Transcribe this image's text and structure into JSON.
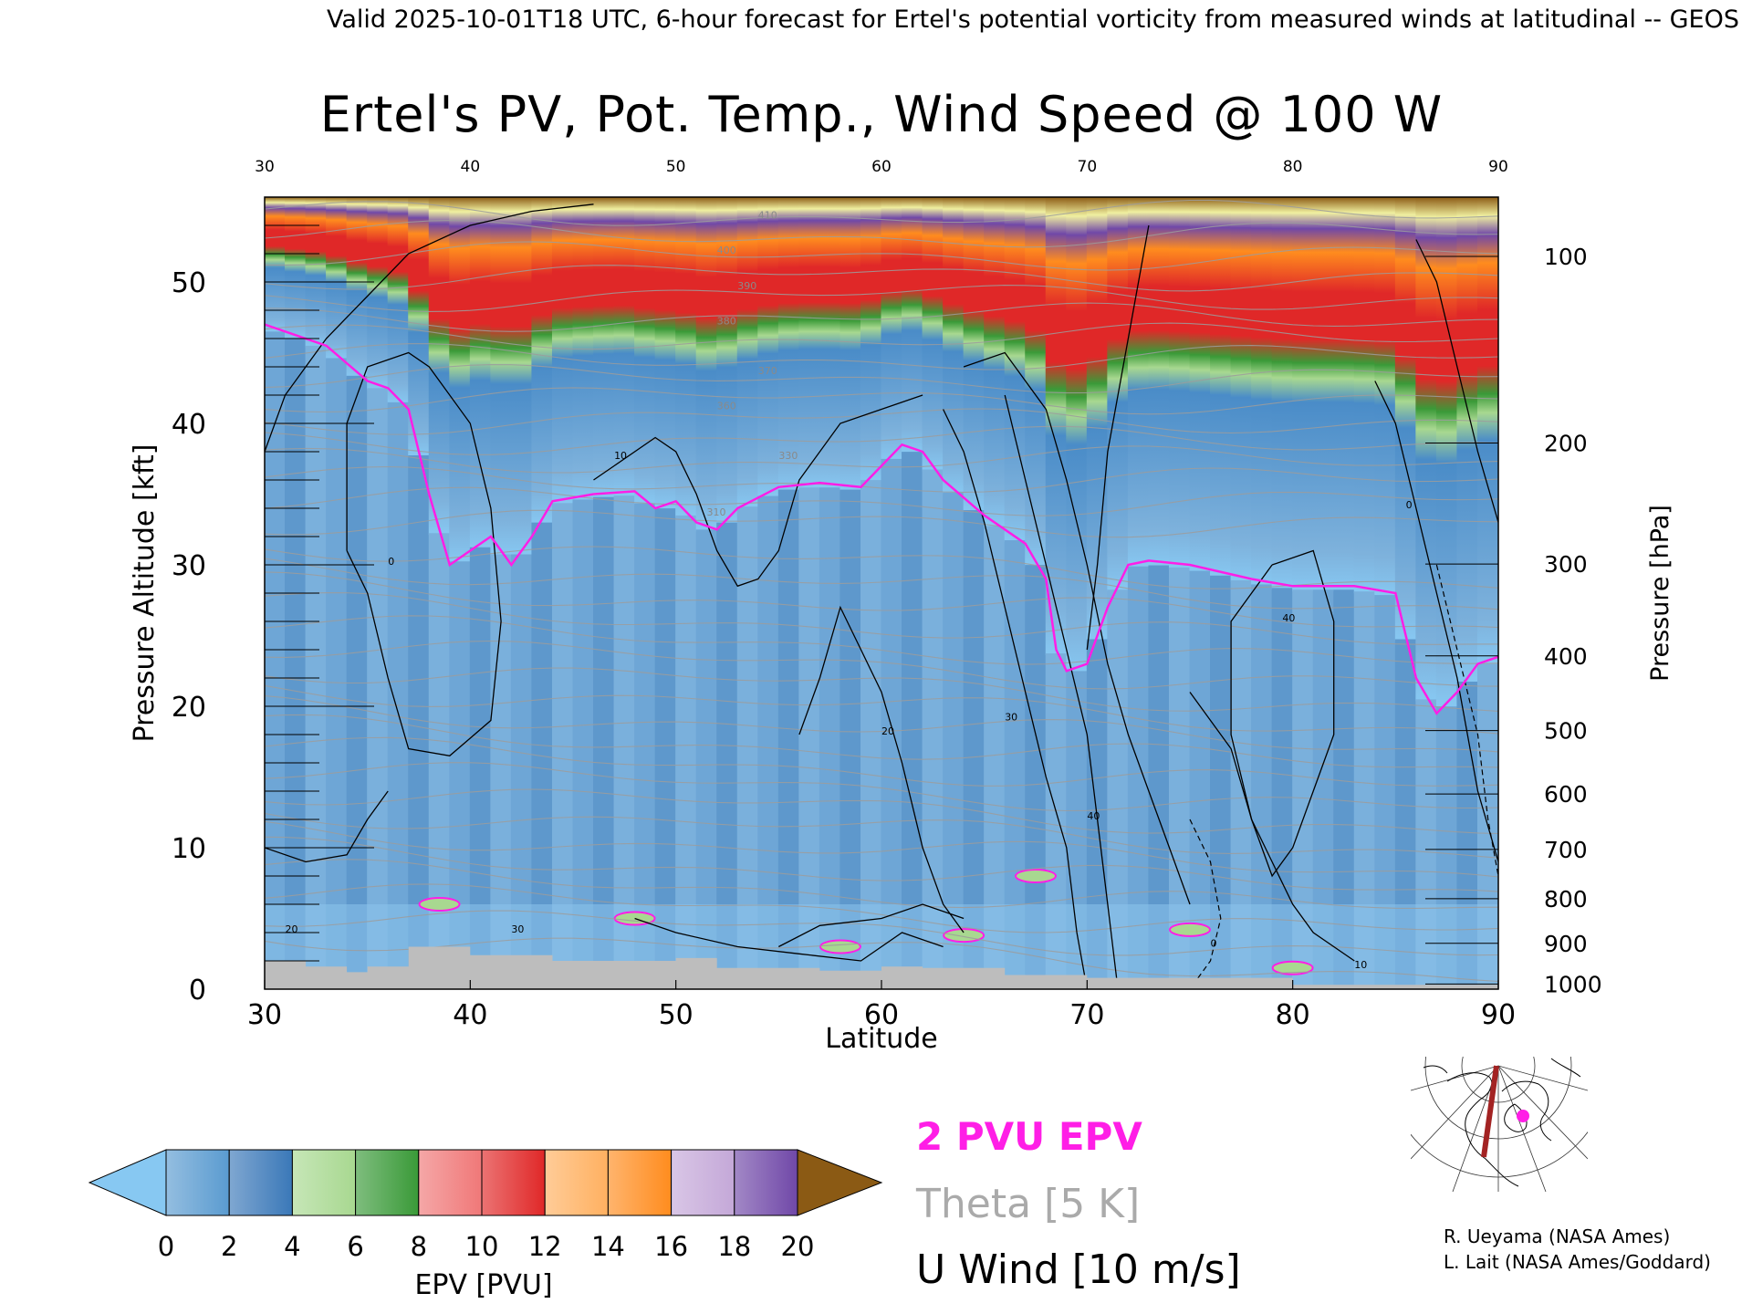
{
  "header": {
    "text": "Valid 2025-10-01T18 UTC, 6-hour forecast for Ertel's potential vorticity from measured winds at latitudinal -- GEOS"
  },
  "chart_data": {
    "type": "heatmap",
    "title": "Ertel's PV, Pot. Temp., Wind Speed @ 100 W",
    "xlabel": "Latitude",
    "ylabel_left": "Pressure Altitude [kft]",
    "ylabel_right": "Pressure [hPa]",
    "xlim": [
      30,
      90
    ],
    "ylim": [
      0,
      56
    ],
    "x_ticks": [
      "30",
      "40",
      "50",
      "60",
      "70",
      "80",
      "90"
    ],
    "top_ticks": [
      "30",
      "40",
      "50",
      "60",
      "70",
      "80",
      "90"
    ],
    "y_ticks": [
      "0",
      "10",
      "20",
      "30",
      "40",
      "50"
    ],
    "pressure_ticks": [
      {
        "label": "100",
        "hpa": 100
      },
      {
        "label": "200",
        "hpa": 200
      },
      {
        "label": "300",
        "hpa": 300
      },
      {
        "label": "400",
        "hpa": 400
      },
      {
        "label": "500",
        "hpa": 500
      },
      {
        "label": "600",
        "hpa": 600
      },
      {
        "label": "700",
        "hpa": 700
      },
      {
        "label": "800",
        "hpa": 800
      },
      {
        "label": "900",
        "hpa": 900
      },
      {
        "label": "1000",
        "hpa": 1000
      }
    ],
    "colorbar": {
      "label": "EPV [PVU]",
      "ticks": [
        "0",
        "2",
        "4",
        "6",
        "8",
        "10",
        "12",
        "14",
        "16",
        "18",
        "20"
      ],
      "colors": [
        "#5a9bd0",
        "#3a78b8",
        "#a8d890",
        "#3a9a38",
        "#f07878",
        "#e02828",
        "#ffb060",
        "#ff8c1e",
        "#c4a8d8",
        "#7048a8",
        "#f0f0a0"
      ],
      "under_color": "#87c8f2",
      "over_color": "#8b5a14"
    },
    "tropopause_contour": {
      "label": "2 PVU EPV",
      "color": "#ff1ee6",
      "points": [
        [
          30,
          47
        ],
        [
          31,
          46.5
        ],
        [
          33,
          45.5
        ],
        [
          35,
          43
        ],
        [
          36,
          42.5
        ],
        [
          37,
          41
        ],
        [
          38,
          35
        ],
        [
          39,
          30
        ],
        [
          40,
          31
        ],
        [
          41,
          32
        ],
        [
          42,
          30
        ],
        [
          43,
          32
        ],
        [
          44,
          34.5
        ],
        [
          46,
          35
        ],
        [
          48,
          35.2
        ],
        [
          49,
          34
        ],
        [
          50,
          34.5
        ],
        [
          51,
          33
        ],
        [
          52,
          32.5
        ],
        [
          53,
          34
        ],
        [
          55,
          35.5
        ],
        [
          57,
          35.8
        ],
        [
          59,
          35.5
        ],
        [
          61,
          38.5
        ],
        [
          62,
          38
        ],
        [
          63,
          36
        ],
        [
          65,
          33.5
        ],
        [
          67,
          31.5
        ],
        [
          68,
          29
        ],
        [
          68.5,
          24
        ],
        [
          69,
          22.5
        ],
        [
          70,
          23
        ],
        [
          71,
          27
        ],
        [
          72,
          30
        ],
        [
          73,
          30.3
        ],
        [
          75,
          30
        ],
        [
          78,
          29
        ],
        [
          80,
          28.5
        ],
        [
          83,
          28.5
        ],
        [
          85,
          28
        ],
        [
          86,
          22
        ],
        [
          87,
          19.5
        ],
        [
          88,
          21
        ],
        [
          89,
          23
        ],
        [
          90,
          23.5
        ]
      ]
    },
    "theta_labels": [
      "310",
      "330",
      "360",
      "370",
      "380",
      "390",
      "400",
      "410"
    ],
    "wind_labels": [
      "0",
      "10",
      "20",
      "30",
      "40"
    ],
    "legend": {
      "pv_label": "2 PVU EPV",
      "theta_label": "Theta [5 K]",
      "wind_label": "U Wind [10 m/s]",
      "pv_color": "#ff1ee6",
      "theta_color": "#aaaaaa",
      "wind_color": "#000000"
    }
  },
  "credits": {
    "line1": "R. Ueyama (NASA Ames)",
    "line2": "L. Lait (NASA Ames/Goddard)"
  },
  "inset": {
    "section_color": "#a32323",
    "marker_color": "#ff1ee6"
  }
}
